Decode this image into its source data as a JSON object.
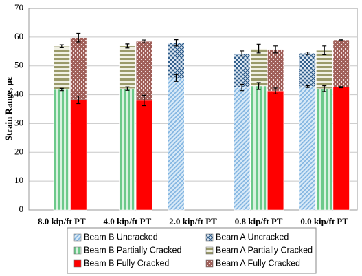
{
  "chart_data": {
    "type": "overlapped_bar",
    "y_label": "Strain Range, με",
    "categories": [
      "8.0 kip/ft PT",
      "4.0 kip/ft PT",
      "2.0 kip/ft PT",
      "0.8 kip/ft PT",
      "0.0 kip/ft PT"
    ],
    "ylim": [
      0,
      70
    ],
    "yticks": [
      0,
      10,
      20,
      30,
      40,
      50,
      60,
      70
    ],
    "grid": true,
    "series": [
      {
        "name": "Beam B Uncracked",
        "color": "#7fb3e0",
        "pattern": "diagonal",
        "values": [
          null,
          null,
          45.8,
          42.5,
          42.8
        ],
        "errors": [
          null,
          null,
          1.2,
          1.1,
          0.3
        ]
      },
      {
        "name": "Beam B Partially Cracked",
        "color": "#6cc98a",
        "pattern": "vertical",
        "values": [
          41.8,
          42.1,
          null,
          43.0,
          42.1
        ],
        "errors": [
          0.4,
          0.6,
          null,
          1.2,
          1.0
        ]
      },
      {
        "name": "Beam B Fully Cracked",
        "color": "#ff0000",
        "pattern": "solid",
        "values": [
          38.2,
          38.0,
          null,
          41.3,
          42.6
        ],
        "errors": [
          1.3,
          1.8,
          null,
          1.0,
          0.2
        ]
      },
      {
        "name": "Beam A Uncracked",
        "color": "#2e5c8a",
        "pattern": "crossdiagonal",
        "values": [
          null,
          null,
          58.0,
          54.3,
          54.4
        ],
        "errors": [
          null,
          null,
          1.1,
          0.9,
          0.4
        ]
      },
      {
        "name": "Beam A Partially Cracked",
        "color": "#9a9a6a",
        "pattern": "horizontal",
        "values": [
          56.8,
          56.9,
          null,
          56.0,
          55.4
        ],
        "errors": [
          0.5,
          0.7,
          null,
          1.5,
          1.5
        ]
      },
      {
        "name": "Beam A Fully Cracked",
        "color": "#a0605a",
        "pattern": "checker",
        "values": [
          59.8,
          58.5,
          null,
          55.7,
          59.0
        ],
        "errors": [
          1.5,
          0.5,
          null,
          1.2,
          0.2
        ]
      }
    ]
  }
}
